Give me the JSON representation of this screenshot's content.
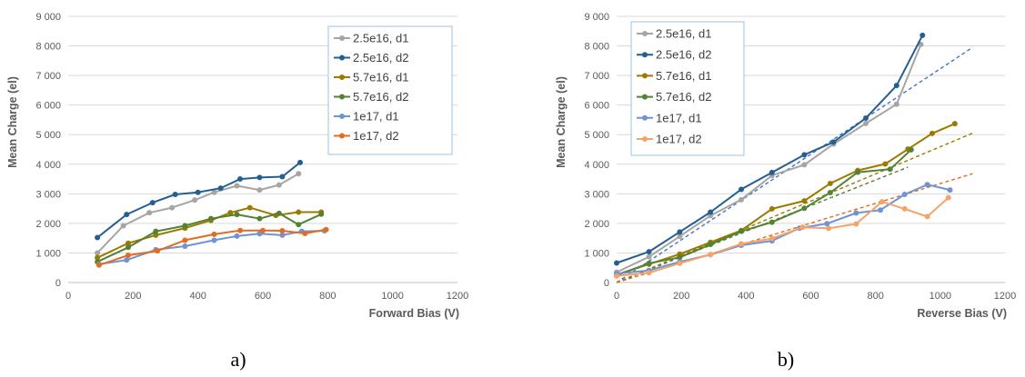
{
  "chart_data": [
    {
      "type": "line",
      "caption": "a)",
      "xlabel": "Forward Bias (V)",
      "ylabel": "Mean Charge (el)",
      "xlim": [
        0,
        1200
      ],
      "ylim": [
        0,
        9000
      ],
      "xticks": [
        "0",
        "200",
        "400",
        "600",
        "800",
        "1000",
        "1200"
      ],
      "yticks": [
        "0",
        "1 000",
        "2 000",
        "3 000",
        "4 000",
        "5 000",
        "6 000",
        "7 000",
        "8 000",
        "9 000"
      ],
      "grid": "horizontal",
      "legend_position": "top-right",
      "series": [
        {
          "name": "2.5e16, d1",
          "color": "#a5a5a5",
          "x": [
            90,
            170,
            250,
            320,
            390,
            450,
            520,
            590,
            650,
            710
          ],
          "y": [
            1000,
            1920,
            2360,
            2530,
            2790,
            3050,
            3270,
            3130,
            3300,
            3680
          ]
        },
        {
          "name": "2.5e16, d2",
          "color": "#255e91",
          "x": [
            90,
            180,
            260,
            330,
            400,
            470,
            530,
            590,
            660,
            715
          ],
          "y": [
            1520,
            2300,
            2700,
            2980,
            3050,
            3190,
            3500,
            3550,
            3580,
            4060
          ]
        },
        {
          "name": "5.7e16, d1",
          "color": "#9c7a00",
          "x": [
            90,
            185,
            270,
            360,
            440,
            500,
            560,
            640,
            710,
            780
          ],
          "y": [
            840,
            1330,
            1600,
            1840,
            2100,
            2360,
            2530,
            2270,
            2380,
            2380
          ]
        },
        {
          "name": "5.7e16, d2",
          "color": "#548235",
          "x": [
            90,
            185,
            270,
            360,
            440,
            520,
            590,
            650,
            710,
            780
          ],
          "y": [
            700,
            1190,
            1730,
            1920,
            2160,
            2300,
            2160,
            2340,
            1960,
            2310
          ]
        },
        {
          "name": "1e17, d1",
          "color": "#6f93d4",
          "x": [
            95,
            180,
            270,
            360,
            450,
            520,
            590,
            660,
            720,
            790
          ],
          "y": [
            620,
            760,
            1110,
            1230,
            1430,
            1570,
            1650,
            1600,
            1730,
            1750
          ]
        },
        {
          "name": "1e17, d2",
          "color": "#e46c1f",
          "x": [
            95,
            185,
            275,
            360,
            450,
            530,
            600,
            660,
            730,
            795
          ],
          "y": [
            590,
            920,
            1070,
            1430,
            1630,
            1760,
            1760,
            1750,
            1660,
            1790
          ]
        }
      ]
    },
    {
      "type": "line",
      "caption": "b)",
      "xlabel": "Reverse Bias (V)",
      "ylabel": "Mean Charge (el)",
      "xlim": [
        0,
        1200
      ],
      "ylim": [
        0,
        9000
      ],
      "xticks": [
        "0",
        "200",
        "400",
        "600",
        "800",
        "1000",
        "1200"
      ],
      "yticks": [
        "0",
        "1 000",
        "2 000",
        "3 000",
        "4 000",
        "5 000",
        "6 000",
        "7 000",
        "8 000",
        "9 000"
      ],
      "grid": "horizontal",
      "legend_position": "top-left",
      "series": [
        {
          "name": "2.5e16, d1",
          "color": "#a5a5a5",
          "x": [
            0,
            100,
            195,
            290,
            385,
            480,
            580,
            670,
            770,
            865,
            940
          ],
          "y": [
            350,
            870,
            1560,
            2260,
            2800,
            3620,
            3980,
            4680,
            5380,
            6030,
            8050
          ]
        },
        {
          "name": "2.5e16, d2",
          "color": "#255e91",
          "x": [
            0,
            100,
            195,
            290,
            385,
            480,
            580,
            670,
            770,
            865,
            945
          ],
          "y": [
            660,
            1040,
            1710,
            2380,
            3150,
            3720,
            4320,
            4750,
            5560,
            6660,
            8360
          ]
        },
        {
          "name": "5.7e16, d1",
          "color": "#9c7a00",
          "x": [
            0,
            100,
            195,
            290,
            385,
            480,
            580,
            660,
            745,
            830,
            900,
            975,
            1045
          ],
          "y": [
            270,
            620,
            960,
            1360,
            1760,
            2490,
            2760,
            3350,
            3790,
            4010,
            4510,
            5040,
            5370
          ]
        },
        {
          "name": "5.7e16, d2",
          "color": "#548235",
          "x": [
            0,
            100,
            195,
            290,
            385,
            480,
            580,
            660,
            745,
            845,
            910
          ],
          "y": [
            240,
            650,
            850,
            1290,
            1730,
            2040,
            2510,
            3040,
            3730,
            3830,
            4490
          ]
        },
        {
          "name": "1e17, d1",
          "color": "#6f93d4",
          "x": [
            0,
            100,
            195,
            290,
            385,
            480,
            565,
            650,
            740,
            815,
            890,
            960,
            1030
          ],
          "y": [
            300,
            410,
            700,
            940,
            1260,
            1410,
            1840,
            1990,
            2350,
            2450,
            2980,
            3310,
            3130
          ]
        },
        {
          "name": "1e17, d2",
          "color": "#f4a36b",
          "x": [
            0,
            100,
            195,
            290,
            385,
            480,
            575,
            655,
            740,
            820,
            890,
            960,
            1025
          ],
          "y": [
            220,
            330,
            650,
            950,
            1310,
            1490,
            1870,
            1830,
            1980,
            2730,
            2490,
            2230,
            2870
          ]
        }
      ],
      "trendlines": [
        {
          "color": "#4472c4",
          "x": [
            0,
            1100
          ],
          "y": [
            0,
            7950
          ]
        },
        {
          "color": "#9c7a00",
          "x": [
            0,
            1100
          ],
          "y": [
            0,
            5050
          ]
        },
        {
          "color": "#548235",
          "x": [
            0,
            900
          ],
          "y": [
            0,
            3900
          ]
        },
        {
          "color": "#e46c1f",
          "x": [
            0,
            1100
          ],
          "y": [
            0,
            3680
          ]
        }
      ]
    }
  ]
}
